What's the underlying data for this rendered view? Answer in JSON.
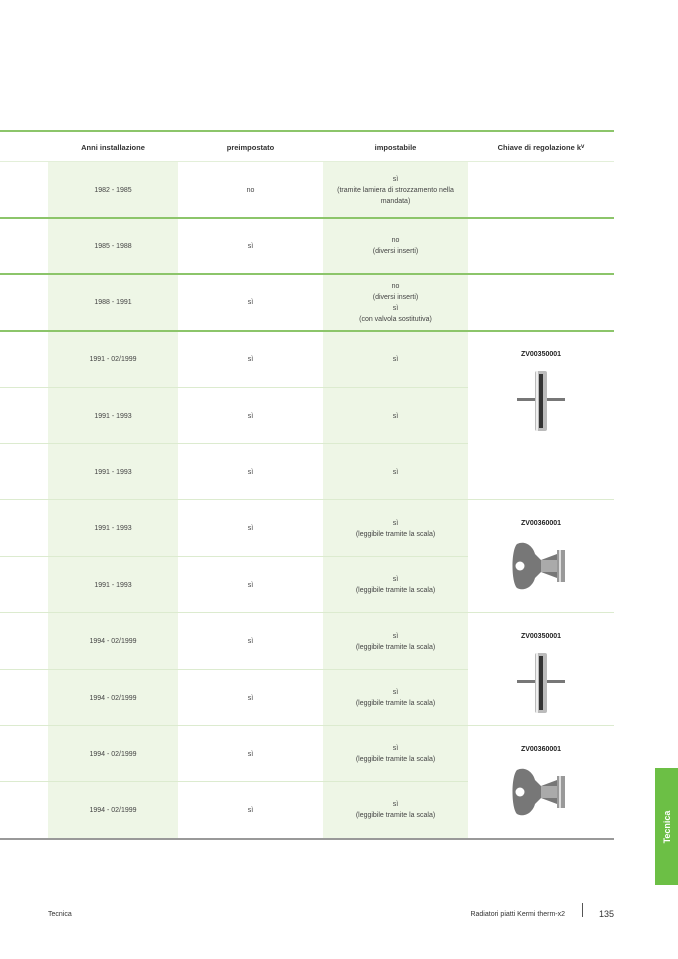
{
  "table": {
    "headers": {
      "anni": "Anni installazione",
      "preimpostato": "preimpostato",
      "impostabile": "impostabile",
      "chiave": "Chiave di regolazione k",
      "chiave_sub": "v"
    },
    "rows": [
      {
        "anni": "1982 - 1985",
        "pre": "no",
        "imp": [
          "sì",
          "(tramite lamiera di strozzamento nella",
          "mandata)"
        ]
      },
      {
        "anni": "1985 - 1988",
        "pre": "sì",
        "imp": [
          "no",
          "(diversi inserti)"
        ]
      },
      {
        "anni": "1988 - 1991",
        "pre": "sì",
        "imp": [
          "no",
          "(diversi inserti)",
          "sì",
          "(con valvola sostitutiva)"
        ]
      },
      {
        "anni": "1991 - 02/1999",
        "pre": "sì",
        "imp": [
          "sì"
        ]
      },
      {
        "anni": "1991 - 1993",
        "pre": "sì",
        "imp": [
          "sì"
        ]
      },
      {
        "anni": "1991 - 1993",
        "pre": "sì",
        "imp": [
          "sì"
        ]
      },
      {
        "anni": "1991 - 1993",
        "pre": "sì",
        "imp": [
          "sì",
          "(leggibile tramite la scala)"
        ]
      },
      {
        "anni": "1991 - 1993",
        "pre": "sì",
        "imp": [
          "sì",
          "(leggibile tramite la scala)"
        ]
      },
      {
        "anni": "1994 - 02/1999",
        "pre": "sì",
        "imp": [
          "sì",
          "(leggibile tramite la scala)"
        ]
      },
      {
        "anni": "1994 - 02/1999",
        "pre": "sì",
        "imp": [
          "sì",
          "(leggibile tramite la scala)"
        ]
      },
      {
        "anni": "1994 - 02/1999",
        "pre": "sì",
        "imp": [
          "sì",
          "(leggibile tramite la scala)"
        ]
      },
      {
        "anni": "1994 - 02/1999",
        "pre": "sì",
        "imp": [
          "sì",
          "(leggibile tramite la scala)"
        ]
      }
    ],
    "key_groups": [
      {
        "code": "ZV00350001",
        "icon": "t-key-icon",
        "first_row": 3,
        "span": 3
      },
      {
        "code": "ZV00360001",
        "icon": "radiator-key-icon",
        "first_row": 6,
        "span": 2
      },
      {
        "code": "ZV00350001",
        "icon": "t-key-icon",
        "first_row": 8,
        "span": 2
      },
      {
        "code": "ZV00360001",
        "icon": "radiator-key-icon",
        "first_row": 10,
        "span": 2
      }
    ]
  },
  "side_tab": "Tecnica",
  "footer": {
    "left": "Tecnica",
    "right": "Radiatori piatti Kermi therm-x2",
    "page": "135"
  },
  "colors": {
    "accent": "#6cbf45",
    "band": "#eef6e6"
  }
}
